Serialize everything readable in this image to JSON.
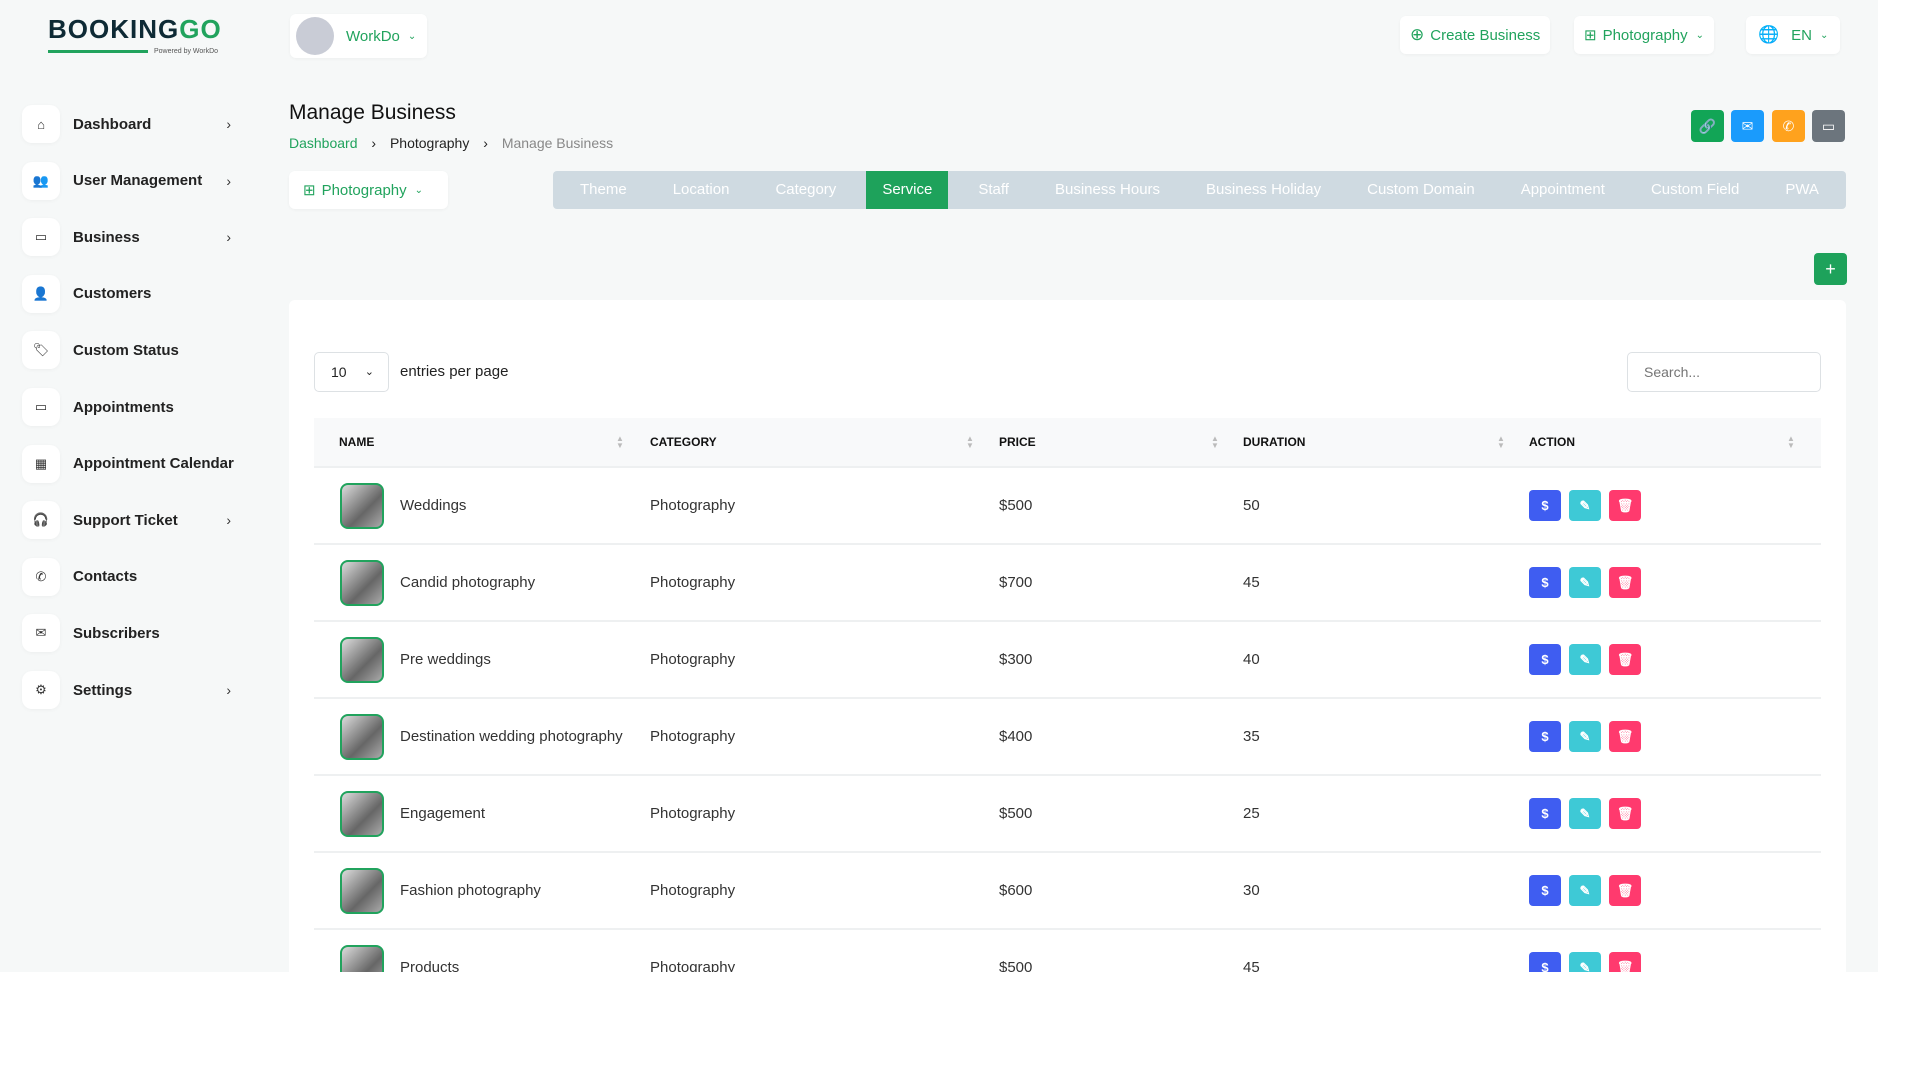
{
  "logo": {
    "text_a": "BOOKING",
    "text_b": "GO",
    "powered": "Powered by WorkDo"
  },
  "sidebar": {
    "items": [
      {
        "label": "Dashboard",
        "icon": "home-icon",
        "glyph": "⌂",
        "chevron": true
      },
      {
        "label": "User Management",
        "icon": "users-icon",
        "glyph": "👥",
        "chevron": true
      },
      {
        "label": "Business",
        "icon": "business-icon",
        "glyph": "▭",
        "chevron": true
      },
      {
        "label": "Customers",
        "icon": "user-icon",
        "glyph": "👤",
        "chevron": false
      },
      {
        "label": "Custom Status",
        "icon": "tag-icon",
        "glyph": "🏷",
        "chevron": false
      },
      {
        "label": "Appointments",
        "icon": "card-icon",
        "glyph": "▭",
        "chevron": false
      },
      {
        "label": "Appointment Calendar",
        "icon": "calendar-icon",
        "glyph": "▦",
        "chevron": false
      },
      {
        "label": "Support Ticket",
        "icon": "headset-icon",
        "glyph": "🎧",
        "chevron": true
      },
      {
        "label": "Contacts",
        "icon": "phone-icon",
        "glyph": "✆",
        "chevron": false
      },
      {
        "label": "Subscribers",
        "icon": "mail-icon",
        "glyph": "✉",
        "chevron": false
      },
      {
        "label": "Settings",
        "icon": "gear-icon",
        "glyph": "⚙",
        "chevron": true
      }
    ]
  },
  "topbar": {
    "user": "WorkDo",
    "create_business": "Create Business",
    "business_select": "Photography",
    "language": "EN"
  },
  "header": {
    "title": "Manage Business",
    "breadcrumb": [
      "Dashboard",
      "Photography",
      "Manage Business"
    ]
  },
  "business_dropdown": "Photography",
  "tabs": [
    "Theme",
    "Location",
    "Category",
    "Service",
    "Staff",
    "Business Hours",
    "Business Holiday",
    "Custom Domain",
    "Appointment",
    "Custom Field",
    "PWA"
  ],
  "active_tab": "Service",
  "table": {
    "entries_value": "10",
    "entries_label": "entries per page",
    "search_placeholder": "Search...",
    "columns": [
      "NAME",
      "CATEGORY",
      "PRICE",
      "DURATION",
      "ACTION"
    ],
    "rows": [
      {
        "name": "Weddings",
        "category": "Photography",
        "price": "$500",
        "duration": "50"
      },
      {
        "name": "Candid photography",
        "category": "Photography",
        "price": "$700",
        "duration": "45"
      },
      {
        "name": "Pre weddings",
        "category": "Photography",
        "price": "$300",
        "duration": "40"
      },
      {
        "name": "Destination wedding photography",
        "category": "Photography",
        "price": "$400",
        "duration": "35"
      },
      {
        "name": "Engagement",
        "category": "Photography",
        "price": "$500",
        "duration": "25"
      },
      {
        "name": "Fashion photography",
        "category": "Photography",
        "price": "$600",
        "duration": "30"
      },
      {
        "name": "Products",
        "category": "Photography",
        "price": "$500",
        "duration": "45"
      }
    ]
  },
  "colors": {
    "primary": "#21a35d",
    "blue": "#1a9bfc",
    "orange": "#ffa21d",
    "gray": "#6c757d",
    "indigo": "#3f5df1",
    "cyan": "#3ec9d6",
    "pink": "#ff3a6e",
    "tabbar": "#cfdae1"
  }
}
